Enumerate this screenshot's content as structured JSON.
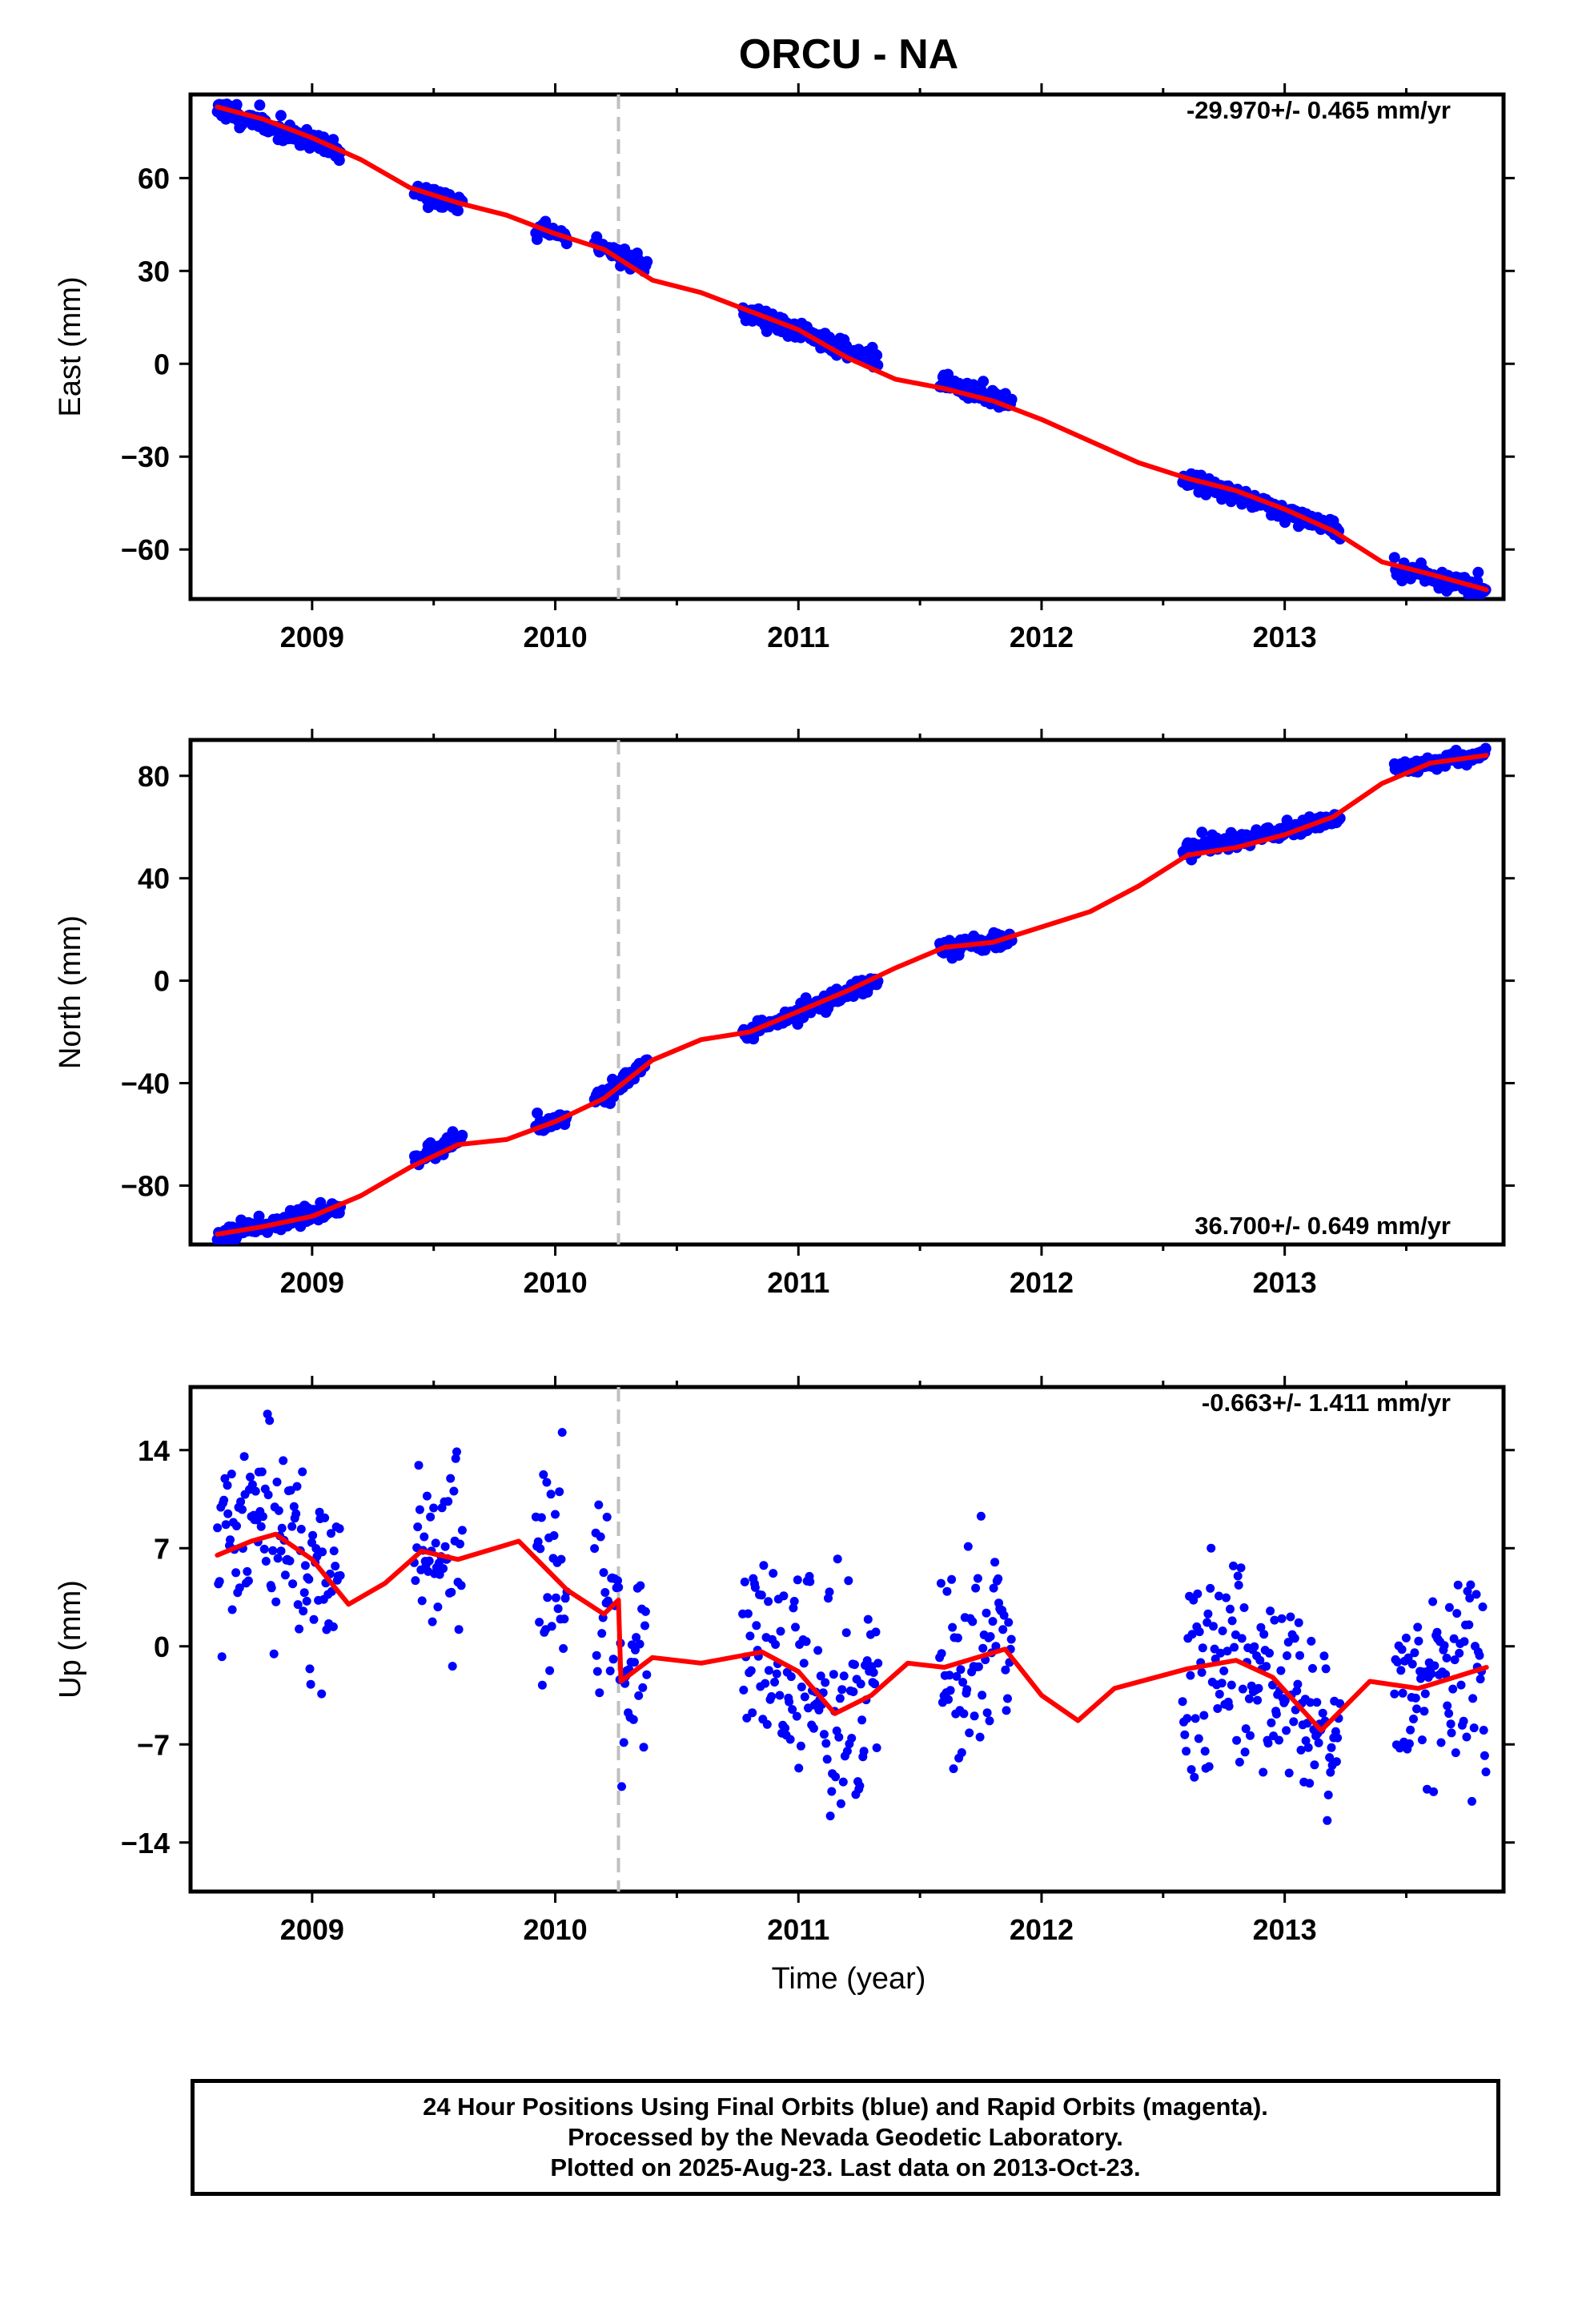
{
  "title": "ORCU - NA",
  "time_label": "Time (year)",
  "footer": {
    "line1": "24 Hour Positions Using Final Orbits (blue) and Rapid Orbits (magenta).",
    "line2": "Processed by the Nevada Geodetic Laboratory.",
    "line3": "Plotted on 2025-Aug-23. Last data on 2013-Oct-23."
  },
  "colors": {
    "data": "#0000ff",
    "model": "#ff0000",
    "event_line": "#c0c0c0"
  },
  "chart_data": [
    {
      "type": "scatter",
      "title": "ORCU - NA",
      "ylabel": "East (mm)",
      "xlabel": "",
      "rate_text": "-29.970+/- 0.465 mm/yr",
      "xlim": [
        2008.5,
        2013.9
      ],
      "ylim": [
        -76,
        87
      ],
      "yticks": [
        -60,
        -30,
        0,
        30,
        60
      ],
      "xticks": [
        2009,
        2010,
        2011,
        2012,
        2013
      ],
      "event_line_x": 2010.26,
      "data_segments": [
        {
          "x": [
            2008.61,
            2009.12
          ],
          "y": [
            83,
            68
          ]
        },
        {
          "x": [
            2009.42,
            2009.62
          ],
          "y": [
            56,
            51
          ]
        },
        {
          "x": [
            2009.92,
            2010.05
          ],
          "y": [
            44,
            41
          ]
        },
        {
          "x": [
            2010.16,
            2010.38
          ],
          "y": [
            39,
            31
          ]
        },
        {
          "x": [
            2010.77,
            2011.33
          ],
          "y": [
            17,
            1
          ]
        },
        {
          "x": [
            2011.58,
            2011.88
          ],
          "y": [
            -6,
            -13
          ]
        },
        {
          "x": [
            2012.58,
            2013.23
          ],
          "y": [
            -36,
            -54
          ]
        },
        {
          "x": [
            2013.45,
            2013.83
          ],
          "y": [
            -66,
            -73
          ]
        }
      ],
      "model": {
        "x": [
          2008.61,
          2008.8,
          2009.0,
          2009.2,
          2009.4,
          2009.6,
          2009.8,
          2010.0,
          2010.2,
          2010.4,
          2010.6,
          2010.8,
          2011.0,
          2011.2,
          2011.4,
          2011.6,
          2011.8,
          2012.0,
          2012.2,
          2012.4,
          2012.6,
          2012.8,
          2013.0,
          2013.2,
          2013.4,
          2013.6,
          2013.83
        ],
        "y": [
          83,
          79,
          73,
          66,
          57,
          52,
          48,
          42,
          37,
          27,
          23,
          17,
          11,
          2,
          -5,
          -8,
          -12,
          -18,
          -25,
          -32,
          -37,
          -41,
          -47,
          -54,
          -64,
          -68,
          -73
        ]
      }
    },
    {
      "type": "scatter",
      "ylabel": "North (mm)",
      "xlabel": "",
      "rate_text": "36.700+/- 0.649 mm/yr",
      "xlim": [
        2008.5,
        2013.9
      ],
      "ylim": [
        -103,
        94
      ],
      "yticks": [
        -80,
        -40,
        0,
        40,
        80
      ],
      "xticks": [
        2009,
        2010,
        2011,
        2012,
        2013
      ],
      "event_line_x": 2010.26,
      "data_segments": [
        {
          "x": [
            2008.61,
            2009.12
          ],
          "y": [
            -99,
            -89
          ]
        },
        {
          "x": [
            2009.42,
            2009.62
          ],
          "y": [
            -70,
            -61
          ]
        },
        {
          "x": [
            2009.92,
            2010.05
          ],
          "y": [
            -56,
            -53
          ]
        },
        {
          "x": [
            2010.16,
            2010.38
          ],
          "y": [
            -46,
            -33
          ]
        },
        {
          "x": [
            2010.77,
            2011.33
          ],
          "y": [
            -22,
            1
          ]
        },
        {
          "x": [
            2011.58,
            2011.88
          ],
          "y": [
            13,
            16
          ]
        },
        {
          "x": [
            2012.58,
            2013.23
          ],
          "y": [
            51,
            63
          ]
        },
        {
          "x": [
            2013.45,
            2013.83
          ],
          "y": [
            83,
            88
          ]
        }
      ],
      "model": {
        "x": [
          2008.61,
          2008.8,
          2009.0,
          2009.2,
          2009.4,
          2009.6,
          2009.8,
          2010.0,
          2010.2,
          2010.4,
          2010.6,
          2010.8,
          2011.0,
          2011.2,
          2011.4,
          2011.6,
          2011.8,
          2012.0,
          2012.2,
          2012.4,
          2012.6,
          2012.8,
          2013.0,
          2013.2,
          2013.4,
          2013.6,
          2013.83
        ],
        "y": [
          -99,
          -96,
          -92,
          -84,
          -73,
          -64,
          -62,
          -55,
          -46,
          -31,
          -23,
          -20,
          -12,
          -4,
          5,
          13,
          15,
          21,
          27,
          37,
          49,
          52,
          57,
          64,
          77,
          85,
          88
        ]
      }
    },
    {
      "type": "scatter",
      "ylabel": "Up (mm)",
      "xlabel": "Time (year)",
      "rate_text": "-0.663+/- 1.411 mm/yr",
      "xlim": [
        2008.5,
        2013.9
      ],
      "ylim": [
        -17.5,
        18.5
      ],
      "yticks": [
        -14,
        -7,
        0,
        7,
        14
      ],
      "xticks": [
        2009,
        2010,
        2011,
        2012,
        2013
      ],
      "event_line_x": 2010.26,
      "data_segments": [
        {
          "x": [
            2008.61,
            2009.12
          ],
          "y": [
            5,
            5
          ]
        },
        {
          "x": [
            2009.42,
            2009.62
          ],
          "y": [
            8,
            8
          ]
        },
        {
          "x": [
            2009.92,
            2010.05
          ],
          "y": [
            -1,
            -1
          ]
        },
        {
          "x": [
            2010.16,
            2010.38
          ],
          "y": [
            -4,
            -4
          ]
        },
        {
          "x": [
            2010.77,
            2011.33
          ],
          "y": [
            0,
            -3
          ]
        },
        {
          "x": [
            2011.58,
            2011.88
          ],
          "y": [
            -5,
            -5
          ]
        },
        {
          "x": [
            2012.58,
            2013.23
          ],
          "y": [
            -1,
            -8
          ]
        },
        {
          "x": [
            2013.45,
            2013.83
          ],
          "y": [
            -5,
            2
          ]
        }
      ],
      "model": {
        "x": [
          2008.61,
          2008.75,
          2008.85,
          2009.0,
          2009.15,
          2009.3,
          2009.45,
          2009.6,
          2009.85,
          2010.05,
          2010.2,
          2010.26,
          2010.27,
          2010.4,
          2010.6,
          2010.85,
          2011.0,
          2011.15,
          2011.3,
          2011.45,
          2011.6,
          2011.85,
          2012.0,
          2012.15,
          2012.3,
          2012.6,
          2012.8,
          2012.95,
          2013.15,
          2013.35,
          2013.55,
          2013.83
        ],
        "y": [
          6.5,
          7.5,
          8.0,
          6.2,
          3.0,
          4.5,
          6.8,
          6.2,
          7.5,
          4.0,
          2.3,
          3.3,
          -2.5,
          -0.8,
          -1.2,
          -0.4,
          -1.8,
          -4.8,
          -3.5,
          -1.2,
          -1.5,
          -0.2,
          -3.5,
          -5.3,
          -3.0,
          -1.6,
          -1.0,
          -2.2,
          -6.0,
          -2.5,
          -3.0,
          -1.5
        ]
      }
    }
  ]
}
